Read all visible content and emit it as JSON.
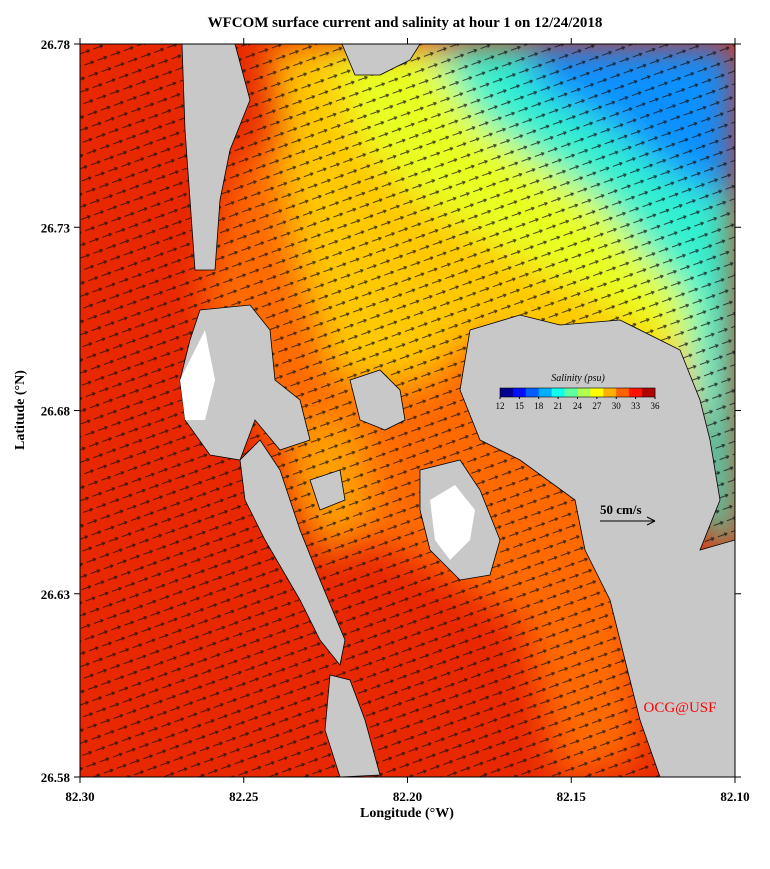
{
  "map": {
    "title": "WFCOM surface current and salinity at hour 1 on 12/24/2018",
    "xlabel": "Longitude (°W)",
    "ylabel": "Latitude (°N)",
    "xlim": [
      82.3,
      82.1
    ],
    "ylim": [
      26.58,
      26.78
    ],
    "xticks": [
      {
        "value": 82.3,
        "label": "82.30"
      },
      82.25,
      {
        "value": 82.2,
        "label": "82.20"
      },
      82.15,
      {
        "value": 82.1,
        "label": "82.10"
      }
    ],
    "yticks": [
      26.58,
      26.63,
      26.68,
      26.73,
      26.78
    ],
    "colorbar": {
      "title": "Salinity (psu)",
      "lim": [
        12,
        36
      ],
      "ticks": [
        12,
        15,
        18,
        21,
        24,
        27,
        30,
        33,
        36
      ],
      "colors": [
        "#00008f",
        "#0010ff",
        "#0060ff",
        "#00b0ff",
        "#10ffef",
        "#60ff9f",
        "#b0ff50",
        "#ffff00",
        "#ffb000",
        "#ff6000",
        "#ff1000",
        "#b00000"
      ]
    },
    "scale_label": "50 cm/s",
    "credit": "OCG@USF"
  }
}
